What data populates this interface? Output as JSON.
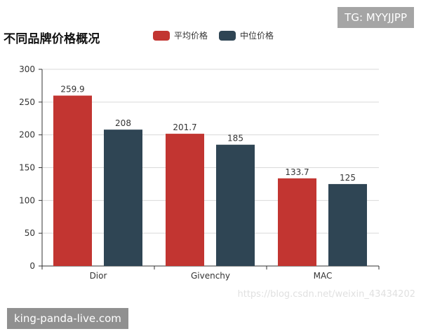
{
  "chart_data": {
    "type": "bar",
    "title": "不同品牌价格概况",
    "categories": [
      "Dior",
      "Givenchy",
      "MAC"
    ],
    "series": [
      {
        "name": "平均价格",
        "values": [
          259.9,
          201.7,
          133.7
        ]
      },
      {
        "name": "中位价格",
        "values": [
          208,
          185,
          125
        ]
      }
    ],
    "data_labels": [
      [
        "259.9",
        "201.7",
        "133.7"
      ],
      [
        "208",
        "185",
        "125"
      ]
    ],
    "xlabel": "",
    "ylabel": "",
    "ylim": [
      0,
      300
    ],
    "yticks": [
      0,
      50,
      100,
      150,
      200,
      250,
      300
    ],
    "grid": true,
    "legend_position": "top",
    "colors": [
      "#c23531",
      "#2f4554"
    ]
  },
  "watermarks": {
    "top_right": "TG: MYYJJPP",
    "bottom_left": "king-panda-live.com",
    "faint": "https://blog.csdn.net/weixin_43434202"
  }
}
